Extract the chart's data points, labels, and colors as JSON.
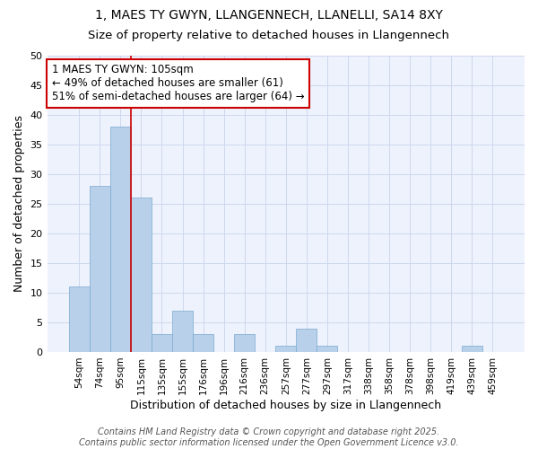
{
  "title1": "1, MAES TY GWYN, LLANGENNECH, LLANELLI, SA14 8XY",
  "title2": "Size of property relative to detached houses in Llangennech",
  "xlabel": "Distribution of detached houses by size in Llangennech",
  "ylabel": "Number of detached properties",
  "categories": [
    "54sqm",
    "74sqm",
    "95sqm",
    "115sqm",
    "135sqm",
    "155sqm",
    "176sqm",
    "196sqm",
    "216sqm",
    "236sqm",
    "257sqm",
    "277sqm",
    "297sqm",
    "317sqm",
    "338sqm",
    "358sqm",
    "378sqm",
    "398sqm",
    "419sqm",
    "439sqm",
    "459sqm"
  ],
  "values": [
    11,
    28,
    38,
    26,
    3,
    7,
    3,
    0,
    3,
    0,
    1,
    4,
    1,
    0,
    0,
    0,
    0,
    0,
    0,
    1,
    0
  ],
  "bar_color": "#b8d0ea",
  "bar_edge_color": "#7aaad0",
  "bar_edge_width": 0.5,
  "vline_x_idx": 2.5,
  "vline_color": "#cc0000",
  "annotation_text": "1 MAES TY GWYN: 105sqm\n← 49% of detached houses are smaller (61)\n51% of semi-detached houses are larger (64) →",
  "annotation_box_color": "white",
  "annotation_box_edge": "#cc0000",
  "annotation_fontsize": 8.5,
  "ylim": [
    0,
    50
  ],
  "yticks": [
    0,
    5,
    10,
    15,
    20,
    25,
    30,
    35,
    40,
    45,
    50
  ],
  "grid_color": "#cdd8ee",
  "background_color": "#eef2fc",
  "footer": "Contains HM Land Registry data © Crown copyright and database right 2025.\nContains public sector information licensed under the Open Government Licence v3.0.",
  "title_fontsize": 10,
  "subtitle_fontsize": 9.5,
  "xlabel_fontsize": 9,
  "ylabel_fontsize": 9,
  "tick_fontsize": 8,
  "footer_fontsize": 7
}
